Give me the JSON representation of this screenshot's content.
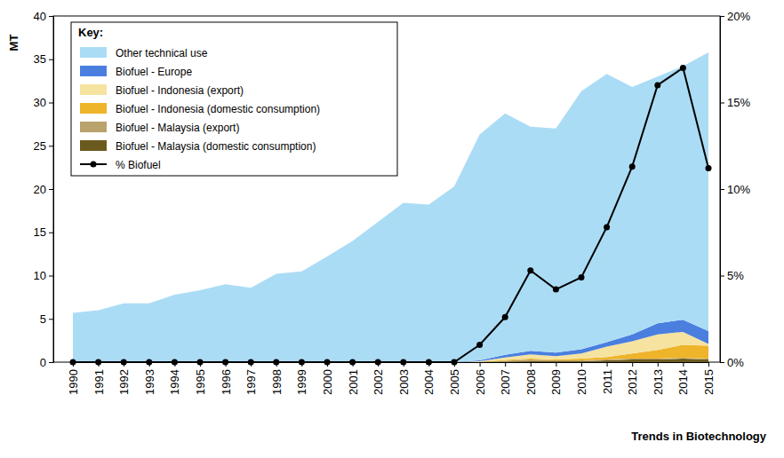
{
  "chart_data": {
    "type": "area",
    "stacked": true,
    "ylabel": "MT",
    "legend_title": "Key:",
    "legend": "upper left",
    "annotation": "Trends in Biotechnology",
    "categories": [
      "1990",
      "1991",
      "1992",
      "1993",
      "1994",
      "1995",
      "1996",
      "1997",
      "1998",
      "1999",
      "2000",
      "2001",
      "2002",
      "2003",
      "2004",
      "2005",
      "2006",
      "2007",
      "2008",
      "2009",
      "2010",
      "2011",
      "2012",
      "2013",
      "2014",
      "2015"
    ],
    "ylim": [
      0,
      40
    ],
    "yticks": [
      0,
      5,
      10,
      15,
      20,
      25,
      30,
      35,
      40
    ],
    "y2lim": [
      0,
      20
    ],
    "y2ticks": [
      {
        "value": 0,
        "label": "0%"
      },
      {
        "value": 5,
        "label": "5%"
      },
      {
        "value": 10,
        "label": "10%"
      },
      {
        "value": 15,
        "label": "15%"
      },
      {
        "value": 20,
        "label": "20%"
      }
    ],
    "series": [
      {
        "name": "Other technical use",
        "color": "#abdcf5",
        "values": [
          5.7,
          6.0,
          6.8,
          6.8,
          7.8,
          8.3,
          9.0,
          8.6,
          10.2,
          10.5,
          12.2,
          14.0,
          16.2,
          18.4,
          18.2,
          20.3,
          26.1,
          27.9,
          25.9,
          25.9,
          29.8,
          31.0,
          28.6,
          28.5,
          29.3,
          32.2
        ]
      },
      {
        "name": "Biofuel - Europe",
        "color": "#4a7fe0",
        "values": [
          0,
          0,
          0,
          0,
          0,
          0,
          0,
          0,
          0,
          0,
          0,
          0,
          0,
          0,
          0,
          0,
          0.1,
          0.3,
          0.4,
          0.4,
          0.5,
          0.5,
          0.8,
          1.3,
          1.4,
          1.5
        ]
      },
      {
        "name": "Biofuel - Indonesia (export)",
        "color": "#f6e3a0",
        "values": [
          0,
          0,
          0,
          0,
          0,
          0,
          0,
          0,
          0,
          0,
          0,
          0,
          0,
          0,
          0,
          0,
          0.1,
          0.3,
          0.5,
          0.4,
          0.6,
          1.2,
          1.4,
          1.8,
          1.5,
          0.2
        ]
      },
      {
        "name": "Biofuel - Indonesia (domestic consumption)",
        "color": "#eeb42a",
        "values": [
          0,
          0,
          0,
          0,
          0,
          0,
          0,
          0,
          0,
          0,
          0,
          0,
          0,
          0,
          0,
          0,
          0,
          0.1,
          0.1,
          0.1,
          0.2,
          0.3,
          0.6,
          1.0,
          1.5,
          1.5
        ]
      },
      {
        "name": "Biofuel - Malaysia (export)",
        "color": "#b9a26c",
        "values": [
          0,
          0,
          0,
          0,
          0,
          0,
          0,
          0,
          0,
          0,
          0,
          0,
          0,
          0,
          0,
          0,
          0,
          0.1,
          0.2,
          0.1,
          0.1,
          0.1,
          0.1,
          0.1,
          0.1,
          0.1
        ]
      },
      {
        "name": "Biofuel - Malaysia (domestic consumption)",
        "color": "#6b5a1e",
        "values": [
          0,
          0,
          0,
          0,
          0,
          0,
          0,
          0,
          0,
          0,
          0,
          0,
          0,
          0,
          0,
          0,
          0,
          0.05,
          0.1,
          0.1,
          0.1,
          0.2,
          0.3,
          0.3,
          0.4,
          0.3
        ]
      },
      {
        "name": "% Biofuel",
        "type": "line",
        "axis": "y2",
        "marker": "circle",
        "color": "#000000",
        "values": [
          0,
          0,
          0,
          0,
          0,
          0,
          0,
          0,
          0,
          0,
          0,
          0,
          0,
          0,
          0,
          0,
          1.0,
          2.6,
          5.3,
          4.2,
          4.9,
          7.8,
          11.3,
          16.0,
          17.0,
          11.2
        ]
      }
    ]
  }
}
